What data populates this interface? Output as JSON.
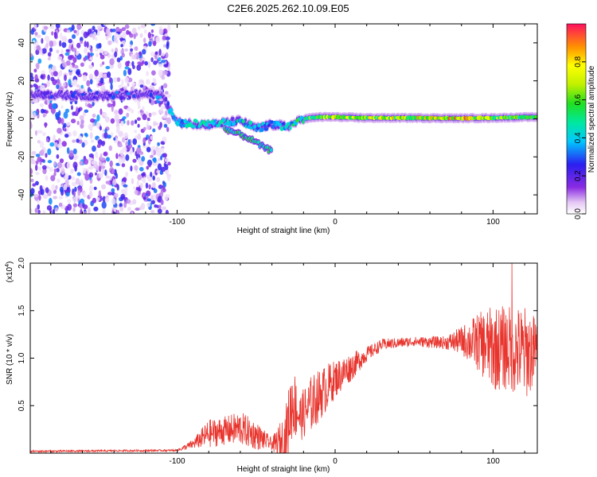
{
  "title": "C2E6.2025.262.10.09.E05",
  "chart_data": [
    {
      "type": "heatmap",
      "xlabel": "Height of straight line (km)",
      "ylabel": "Frequency (Hz)",
      "xlim": [
        -193,
        128
      ],
      "ylim": [
        -50,
        50
      ],
      "xticks": [
        -100,
        0,
        100
      ],
      "xtick_labels": [
        "-100",
        "0",
        "100"
      ],
      "yticks": [
        -40,
        -20,
        0,
        20,
        40
      ],
      "ytick_labels": [
        "-40",
        "-20",
        "0",
        "20",
        "40"
      ],
      "colorbar": {
        "label": "Normalized spectral amplitude",
        "range": [
          0,
          1
        ],
        "ticks": [
          0.0,
          0.2,
          0.4,
          0.6,
          0.8
        ],
        "tick_labels": [
          "0.0",
          "0.2",
          "0.4",
          "0.6",
          "0.8"
        ],
        "colormap": "rainbow"
      },
      "ridge": {
        "x": [
          -193,
          -150,
          -110,
          -100,
          -80,
          -60,
          -50,
          -40,
          -30,
          -20,
          -10,
          0,
          20,
          50,
          80,
          100,
          128
        ],
        "freq": [
          13,
          12,
          13,
          -2,
          -3,
          -1,
          -5,
          -3,
          -4,
          0,
          1,
          1,
          0.5,
          0.5,
          0.3,
          0.5,
          1
        ],
        "amplitude": [
          0.25,
          0.3,
          0.35,
          0.45,
          0.5,
          0.5,
          0.45,
          0.4,
          0.45,
          0.6,
          0.7,
          0.8,
          0.75,
          0.8,
          0.9,
          0.7,
          0.6
        ]
      },
      "branch": {
        "x": [
          -70,
          -55,
          -45,
          -40
        ],
        "freq": [
          -5,
          -10,
          -15,
          -17
        ]
      },
      "noise_region_x": [
        -193,
        -105
      ]
    },
    {
      "type": "line",
      "xlabel": "Height of straight line (km)",
      "ylabel": "SNR (10 * v/v)",
      "y_multiplier": "(x10",
      "y_multiplier_exp": "4",
      "y_multiplier_close": ")",
      "xlim": [
        -193,
        128
      ],
      "ylim": [
        0,
        2.0
      ],
      "xticks": [
        -100,
        0,
        100
      ],
      "xtick_labels": [
        "-100",
        "0",
        "100"
      ],
      "yticks": [
        0.5,
        1.0,
        1.5,
        2.0
      ],
      "ytick_labels": [
        "0.5",
        "1.0",
        "1.5",
        "2.0"
      ],
      "series": [
        {
          "name": "SNR",
          "color": "#e8352e",
          "envelope_x": [
            -193,
            -100,
            -90,
            -80,
            -70,
            -60,
            -50,
            -40,
            -32,
            -27,
            -22,
            -15,
            -5,
            0,
            10,
            20,
            30,
            50,
            70,
            80,
            90,
            100,
            110,
            120,
            128
          ],
          "baseline": [
            0.02,
            0.03,
            0.1,
            0.22,
            0.25,
            0.28,
            0.2,
            0.1,
            0.15,
            0.6,
            0.4,
            0.55,
            0.72,
            0.8,
            0.92,
            1.05,
            1.15,
            1.18,
            1.17,
            1.2,
            1.2,
            1.15,
            1.15,
            1.1,
            1.12
          ],
          "noise": [
            0.01,
            0.01,
            0.05,
            0.15,
            0.15,
            0.18,
            0.15,
            0.06,
            0.3,
            0.4,
            0.25,
            0.3,
            0.25,
            0.2,
            0.15,
            0.08,
            0.06,
            0.05,
            0.07,
            0.15,
            0.3,
            0.45,
            0.45,
            0.5,
            0.35
          ],
          "peak": {
            "x": 112,
            "y": 2.0
          }
        }
      ]
    }
  ]
}
